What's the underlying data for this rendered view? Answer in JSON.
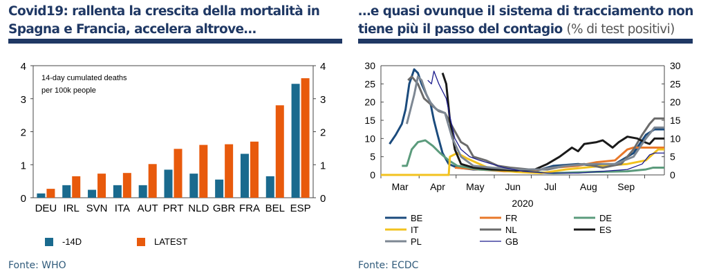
{
  "left": {
    "title_line1": "Covid19: rallenta la crescita della mortalità in",
    "title_line2": "Spagna e Francia, accelera altrove…",
    "source": "Fonte: WHO"
  },
  "right": {
    "title_line1": "…e quasi ovunque il sistema di tracciamento non",
    "title_line2": "tiene più il passo del contagio",
    "title_suffix": "(% di test positivi)",
    "source": "Fonte: ECDC"
  },
  "chart_data": [
    {
      "type": "bar",
      "annotation": [
        "14-day cumulated deaths",
        "per 100k people"
      ],
      "categories": [
        "DEU",
        "IRL",
        "SVN",
        "ITA",
        "AUT",
        "PRT",
        "NLD",
        "GBR",
        "FRA",
        "BEL",
        "ESP"
      ],
      "series": [
        {
          "name": "-14D",
          "color": "#1a6a8e",
          "values": [
            0.13,
            0.38,
            0.24,
            0.38,
            0.38,
            0.85,
            0.73,
            0.55,
            1.33,
            0.65,
            3.45
          ]
        },
        {
          "name": "LATEST",
          "color": "#e85a0c",
          "values": [
            0.27,
            0.65,
            0.73,
            0.75,
            1.02,
            1.48,
            1.6,
            1.62,
            1.7,
            2.8,
            3.62
          ]
        }
      ],
      "ylim": [
        0,
        4
      ],
      "yticks": [
        "0",
        "1",
        "2",
        "3",
        "4"
      ]
    },
    {
      "type": "line",
      "xlabel": "2020",
      "xlim": [
        0,
        230
      ],
      "ylim": [
        0,
        30
      ],
      "yticks": [
        "0",
        "5",
        "10",
        "15",
        "20",
        "25",
        "30"
      ],
      "months": [
        "Mar",
        "Apr",
        "May",
        "Jun",
        "Jul",
        "Aug",
        "Sep"
      ],
      "series": [
        {
          "name": "BE",
          "color": "#1b4b7d",
          "width": 3,
          "points": [
            [
              7,
              8.5
            ],
            [
              12,
              11
            ],
            [
              17,
              14
            ],
            [
              20,
              18
            ],
            [
              23,
              25
            ],
            [
              27,
              29
            ],
            [
              30,
              28
            ],
            [
              33,
              25
            ],
            [
              37,
              22
            ],
            [
              40,
              20
            ],
            [
              43,
              15
            ],
            [
              46,
              11
            ],
            [
              50,
              6
            ],
            [
              55,
              3
            ],
            [
              62,
              2
            ],
            [
              75,
              1.5
            ],
            [
              90,
              1.5
            ],
            [
              110,
              1
            ],
            [
              125,
              1
            ],
            [
              140,
              2.5
            ],
            [
              160,
              3
            ],
            [
              175,
              2.5
            ],
            [
              190,
              3
            ],
            [
              205,
              6
            ],
            [
              215,
              11
            ],
            [
              222,
              12.5
            ],
            [
              230,
              12.5
            ]
          ]
        },
        {
          "name": "FR",
          "color": "#e8782a",
          "width": 3,
          "points": [
            [
              60,
              2
            ],
            [
              80,
              1.5
            ],
            [
              100,
              1
            ],
            [
              120,
              1
            ],
            [
              140,
              2
            ],
            [
              160,
              2.5
            ],
            [
              175,
              3.5
            ],
            [
              190,
              4
            ],
            [
              200,
              7
            ],
            [
              205,
              7.5
            ],
            [
              230,
              7.5
            ]
          ]
        },
        {
          "name": "DE",
          "color": "#5b9b7c",
          "width": 3,
          "points": [
            [
              17,
              2.5
            ],
            [
              21,
              2.5
            ],
            [
              25,
              7
            ],
            [
              30,
              9
            ],
            [
              36,
              9.5
            ],
            [
              42,
              8
            ],
            [
              48,
              6
            ],
            [
              55,
              4
            ],
            [
              62,
              2.5
            ],
            [
              80,
              1.5
            ],
            [
              110,
              1
            ],
            [
              140,
              0.5
            ],
            [
              170,
              0.8
            ],
            [
              200,
              1
            ],
            [
              215,
              1.5
            ],
            [
              221,
              2
            ],
            [
              230,
              2
            ]
          ]
        },
        {
          "name": "IT",
          "color": "#f2c21e",
          "width": 3,
          "points": [
            [
              0,
              0
            ],
            [
              55,
              0
            ],
            [
              56,
              5
            ],
            [
              62,
              6
            ],
            [
              70,
              4.5
            ],
            [
              80,
              3
            ],
            [
              90,
              1.5
            ],
            [
              110,
              0.8
            ],
            [
              130,
              0.5
            ],
            [
              150,
              1.5
            ],
            [
              165,
              2
            ],
            [
              180,
              2.5
            ],
            [
              200,
              3
            ],
            [
              215,
              4
            ],
            [
              225,
              7
            ],
            [
              230,
              7
            ]
          ]
        },
        {
          "name": "NL",
          "color": "#6b6b6b",
          "width": 3,
          "points": [
            [
              22,
              26
            ],
            [
              25,
              27
            ],
            [
              30,
              25
            ],
            [
              35,
              21
            ],
            [
              40,
              19.5
            ],
            [
              47,
              17.5
            ],
            [
              52,
              17
            ],
            [
              60,
              12
            ],
            [
              65,
              9
            ],
            [
              70,
              8
            ],
            [
              75,
              5
            ],
            [
              85,
              4
            ],
            [
              95,
              2.5
            ],
            [
              105,
              2
            ],
            [
              120,
              1.5
            ],
            [
              135,
              1.5
            ],
            [
              150,
              2.5
            ],
            [
              165,
              3
            ],
            [
              180,
              2
            ],
            [
              195,
              3
            ],
            [
              205,
              7
            ],
            [
              212,
              11
            ],
            [
              218,
              14
            ],
            [
              222,
              15.5
            ],
            [
              230,
              15.5
            ]
          ]
        },
        {
          "name": "ES",
          "color": "#1a1a1a",
          "width": 3,
          "points": [
            [
              50,
              28
            ],
            [
              53,
              25
            ],
            [
              56,
              15
            ],
            [
              60,
              7
            ],
            [
              65,
              3
            ],
            [
              75,
              2
            ],
            [
              90,
              1.5
            ],
            [
              110,
              1.2
            ],
            [
              125,
              1.5
            ],
            [
              135,
              3
            ],
            [
              145,
              5
            ],
            [
              155,
              7.5
            ],
            [
              160,
              6.5
            ],
            [
              165,
              8.5
            ],
            [
              175,
              9
            ],
            [
              180,
              9.5
            ],
            [
              188,
              7.5
            ],
            [
              193,
              9
            ],
            [
              200,
              10.5
            ],
            [
              208,
              10
            ],
            [
              214,
              9
            ],
            [
              218,
              8.5
            ],
            [
              222,
              10
            ],
            [
              230,
              10
            ]
          ]
        },
        {
          "name": "PL",
          "color": "#7d8793",
          "width": 3,
          "points": [
            [
              21,
              14
            ],
            [
              24,
              18
            ],
            [
              27,
              22
            ],
            [
              30,
              27
            ],
            [
              33,
              26
            ],
            [
              37,
              22
            ],
            [
              40,
              20
            ],
            [
              45,
              18
            ],
            [
              52,
              17
            ],
            [
              58,
              10
            ],
            [
              65,
              5
            ],
            [
              75,
              2.5
            ],
            [
              90,
              2
            ],
            [
              110,
              1.5
            ],
            [
              130,
              1.5
            ],
            [
              150,
              2.5
            ],
            [
              170,
              3
            ],
            [
              190,
              3
            ],
            [
              205,
              5
            ],
            [
              215,
              10
            ],
            [
              222,
              13
            ],
            [
              230,
              13
            ]
          ]
        },
        {
          "name": "GB",
          "color": "#1a1a8c",
          "width": 1.3,
          "points": [
            [
              38,
              26
            ],
            [
              41,
              25
            ],
            [
              43,
              28.5
            ],
            [
              47,
              25
            ],
            [
              50,
              23
            ],
            [
              53,
              21
            ],
            [
              56,
              16
            ],
            [
              60,
              10
            ],
            [
              65,
              7
            ],
            [
              72,
              5
            ],
            [
              80,
              4
            ],
            [
              90,
              3
            ],
            [
              100,
              2
            ],
            [
              115,
              1
            ],
            [
              135,
              0.5
            ],
            [
              160,
              0.5
            ],
            [
              180,
              1
            ],
            [
              200,
              1.5
            ],
            [
              212,
              3
            ],
            [
              218,
              5.5
            ],
            [
              222,
              6
            ],
            [
              230,
              6
            ]
          ]
        }
      ]
    }
  ]
}
